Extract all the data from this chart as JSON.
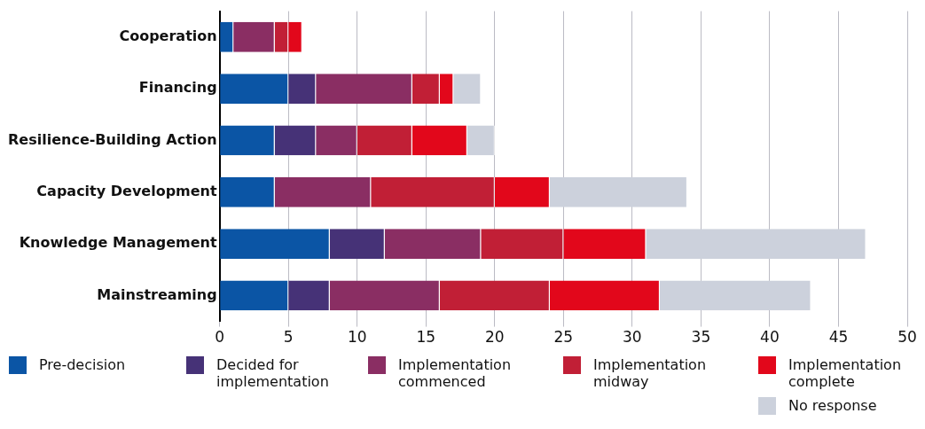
{
  "chart_data": {
    "type": "bar",
    "orientation": "horizontal",
    "stacked": true,
    "categories": [
      "Cooperation",
      "Financing",
      "Resilience-Building Action",
      "Capacity Development",
      "Knowledge Management",
      "Mainstreaming"
    ],
    "series": [
      {
        "name": "Pre-decision",
        "color": "#0b55a5",
        "values": [
          1,
          5,
          4,
          4,
          8,
          5
        ]
      },
      {
        "name": "Decided for implementation",
        "color": "#463277",
        "values": [
          0,
          2,
          3,
          0,
          4,
          3
        ]
      },
      {
        "name": "Implementation commenced",
        "color": "#8a2e63",
        "values": [
          3,
          7,
          3,
          7,
          7,
          8
        ]
      },
      {
        "name": "Implementation midway",
        "color": "#c11f36",
        "values": [
          1,
          2,
          4,
          9,
          6,
          8
        ]
      },
      {
        "name": "Implementation complete",
        "color": "#e2071b",
        "values": [
          1,
          1,
          4,
          4,
          6,
          8
        ]
      },
      {
        "name": "No response",
        "color": "#ccd1dc",
        "values": [
          0,
          2,
          2,
          10,
          16,
          11
        ]
      }
    ],
    "xlim": [
      0,
      50
    ],
    "xticks": [
      0,
      5,
      10,
      15,
      20,
      25,
      30,
      35,
      40,
      45,
      50
    ],
    "grid": "x",
    "legend": "bottom"
  }
}
